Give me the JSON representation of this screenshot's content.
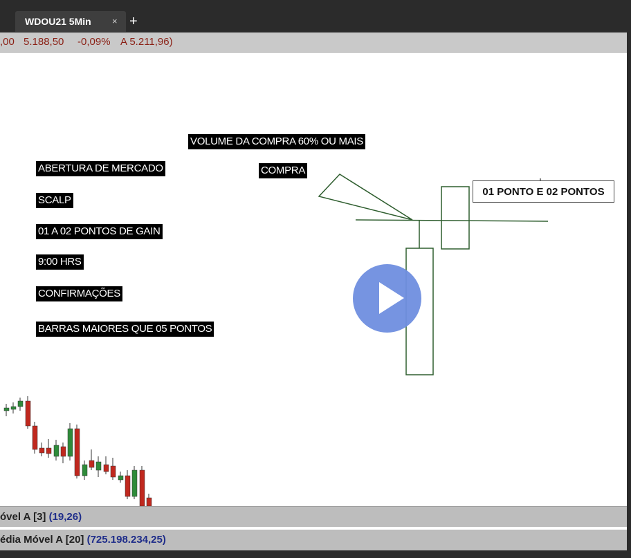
{
  "tab": {
    "title": "WDOU21 5Min",
    "close": "×",
    "add": "+"
  },
  "quote": {
    "item1": ",00",
    "item2": "5.188,50",
    "item3": "-0,09%",
    "item4": "A 5.211,96)"
  },
  "labels": {
    "volume": "VOLUME DA COMPRA 60% OU MAIS",
    "compra": "COMPRA",
    "abertura": "ABERTURA DE MERCADO",
    "scalp": "SCALP",
    "gain": "01 A 02 PONTOS DE GAIN",
    "hora": "9:00 HRS",
    "confirmacoes": "CONFIRMAÇÕES",
    "barras": "BARRAS MAIORES QUE 05 PONTOS",
    "pontos": "01 PONTO E 02 PONTOS"
  },
  "indicators": [
    {
      "name": "óvel A [3]",
      "value": "(19,26)"
    },
    {
      "name": "édia Móvel A [20]",
      "value": "(725.198.234,25)"
    }
  ],
  "colors": {
    "up": "#2e8b3a",
    "down": "#c0281e",
    "drawing": "#2f5e2f",
    "accent": "#6f8fe0"
  },
  "play_button": {
    "icon": "play-icon"
  }
}
